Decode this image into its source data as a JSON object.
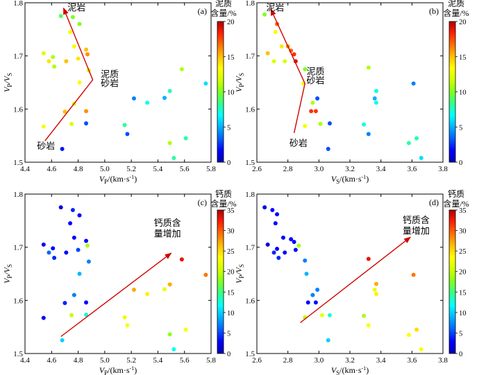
{
  "colormap": [
    "#0000b0",
    "#0000ff",
    "#0060ff",
    "#00b0ff",
    "#00ffff",
    "#30ff90",
    "#80ff20",
    "#d0ff00",
    "#ffff00",
    "#ffc000",
    "#ff7000",
    "#ff2000",
    "#b00000"
  ],
  "chart_data": [
    {
      "type": "scatter",
      "panel_label": "(a)",
      "xlabel_main": "V",
      "xlabel_sub": "P",
      "xlabel_unit": "/(km·s",
      "xlabel_exp": "-1",
      "xlabel_close": ")",
      "ylabel_main": "V",
      "ylabel_sub": "P",
      "ylabel_slash": "/V",
      "ylabel_sub2": "S",
      "xlim": [
        4.4,
        5.8
      ],
      "ylim": [
        1.5,
        1.8
      ],
      "xticks": [
        4.4,
        4.6,
        4.8,
        5.0,
        5.2,
        5.4,
        5.6,
        5.8
      ],
      "xtick_labels": [
        "4.4",
        "4.6",
        "4.8",
        "5.0",
        "5.2",
        "5.4",
        "5.6",
        "5.8"
      ],
      "yticks": [
        1.5,
        1.6,
        1.7,
        1.8
      ],
      "ytick_labels": [
        "1.5",
        "1.6",
        "1.7",
        "1.8"
      ],
      "colorbar": {
        "title_line1": "泥质",
        "title_line2": "含量/%",
        "min": 0,
        "max": 20,
        "ticks": [
          0,
          5,
          10,
          15,
          20
        ],
        "tick_labels": [
          "0",
          "5",
          "10",
          "15",
          "20"
        ]
      },
      "annotations": [
        {
          "text": "泥岩",
          "x": 4.72,
          "y": 1.785
        },
        {
          "text": "泥质",
          "x": 4.97,
          "y": 1.66
        },
        {
          "text": "砂岩",
          "x": 4.97,
          "y": 1.643
        },
        {
          "text": "砂岩",
          "x": 4.49,
          "y": 1.525
        }
      ],
      "arrows": [
        {
          "path": [
            [
              4.55,
              1.54
            ],
            [
              4.91,
              1.655
            ],
            [
              4.69,
              1.79
            ]
          ],
          "head": "end"
        }
      ],
      "points": [
        {
          "x": 4.54,
          "y": 1.705,
          "c": 12
        },
        {
          "x": 4.58,
          "y": 1.69,
          "c": 14
        },
        {
          "x": 4.61,
          "y": 1.698,
          "c": 11
        },
        {
          "x": 4.62,
          "y": 1.68,
          "c": 11
        },
        {
          "x": 4.67,
          "y": 1.775,
          "c": 9
        },
        {
          "x": 4.71,
          "y": 1.69,
          "c": 15
        },
        {
          "x": 4.76,
          "y": 1.773,
          "c": 10
        },
        {
          "x": 4.77,
          "y": 1.718,
          "c": 13
        },
        {
          "x": 4.81,
          "y": 1.76,
          "c": 10
        },
        {
          "x": 4.8,
          "y": 1.695,
          "c": 14
        },
        {
          "x": 4.86,
          "y": 1.712,
          "c": 15
        },
        {
          "x": 4.87,
          "y": 1.703,
          "c": 16
        },
        {
          "x": 4.88,
          "y": 1.673,
          "c": 12
        },
        {
          "x": 4.74,
          "y": 1.745,
          "c": 13
        },
        {
          "x": 4.81,
          "y": 1.65,
          "c": 13
        },
        {
          "x": 4.7,
          "y": 1.595,
          "c": 15
        },
        {
          "x": 4.77,
          "y": 1.61,
          "c": 12
        },
        {
          "x": 4.86,
          "y": 1.596,
          "c": 16
        },
        {
          "x": 4.75,
          "y": 1.572,
          "c": 12
        },
        {
          "x": 4.86,
          "y": 1.573,
          "c": 3
        },
        {
          "x": 4.54,
          "y": 1.567,
          "c": 13
        },
        {
          "x": 4.68,
          "y": 1.525,
          "c": 2
        },
        {
          "x": 5.22,
          "y": 1.62,
          "c": 4
        },
        {
          "x": 5.32,
          "y": 1.612,
          "c": 7
        },
        {
          "x": 5.45,
          "y": 1.621,
          "c": 5
        },
        {
          "x": 5.49,
          "y": 1.634,
          "c": 8
        },
        {
          "x": 5.15,
          "y": 1.57,
          "c": 8
        },
        {
          "x": 5.17,
          "y": 1.553,
          "c": 3
        },
        {
          "x": 5.49,
          "y": 1.536,
          "c": 11
        },
        {
          "x": 5.52,
          "y": 1.508,
          "c": 8
        },
        {
          "x": 5.58,
          "y": 1.675,
          "c": 11
        },
        {
          "x": 5.61,
          "y": 1.545,
          "c": 8
        },
        {
          "x": 5.76,
          "y": 1.648,
          "c": 6
        }
      ]
    },
    {
      "type": "scatter",
      "panel_label": "(b)",
      "xlabel_main": "V",
      "xlabel_sub": "S",
      "xlabel_unit": "/(km·s",
      "xlabel_exp": "-1",
      "xlabel_close": ")",
      "ylabel_main": "V",
      "ylabel_sub": "P",
      "ylabel_slash": "/V",
      "ylabel_sub2": "S",
      "xlim": [
        2.6,
        3.8
      ],
      "ylim": [
        1.5,
        1.8
      ],
      "xticks": [
        2.6,
        2.8,
        3.0,
        3.2,
        3.4,
        3.6,
        3.8
      ],
      "xtick_labels": [
        "2.6",
        "2.8",
        "3.0",
        "3.2",
        "3.4",
        "3.6",
        "3.8"
      ],
      "yticks": [
        1.5,
        1.6,
        1.7,
        1.8
      ],
      "ytick_labels": [
        "1.5",
        "1.6",
        "1.7",
        "1.8"
      ],
      "colorbar": {
        "title_line1": "泥质",
        "title_line2": "含量/%",
        "min": 0,
        "max": 20,
        "ticks": [
          0,
          5,
          10,
          15,
          20
        ],
        "tick_labels": [
          "0",
          "5",
          "10",
          "15",
          "20"
        ]
      },
      "annotations": [
        {
          "text": "泥岩",
          "x": 2.66,
          "y": 1.785
        },
        {
          "text": "泥质",
          "x": 2.92,
          "y": 1.665
        },
        {
          "text": "砂岩",
          "x": 2.92,
          "y": 1.648
        },
        {
          "text": "砂岩",
          "x": 2.81,
          "y": 1.53
        }
      ],
      "arrows": [
        {
          "path": [
            [
              2.84,
              1.555
            ],
            [
              2.91,
              1.648
            ],
            [
              2.69,
              1.788
            ]
          ],
          "head": "end"
        }
      ],
      "points": [
        {
          "x": 2.65,
          "y": 1.778,
          "c": 10
        },
        {
          "x": 2.67,
          "y": 1.705,
          "c": 15
        },
        {
          "x": 2.72,
          "y": 1.745,
          "c": 13
        },
        {
          "x": 2.73,
          "y": 1.76,
          "c": 17
        },
        {
          "x": 2.71,
          "y": 1.69,
          "c": 12
        },
        {
          "x": 2.76,
          "y": 1.718,
          "c": 14
        },
        {
          "x": 2.78,
          "y": 1.69,
          "c": 12
        },
        {
          "x": 2.8,
          "y": 1.718,
          "c": 16
        },
        {
          "x": 2.82,
          "y": 1.71,
          "c": 17
        },
        {
          "x": 2.84,
          "y": 1.703,
          "c": 18
        },
        {
          "x": 2.85,
          "y": 1.69,
          "c": 19
        },
        {
          "x": 2.91,
          "y": 1.675,
          "c": 10
        },
        {
          "x": 2.9,
          "y": 1.648,
          "c": 13
        },
        {
          "x": 2.96,
          "y": 1.612,
          "c": 11
        },
        {
          "x": 2.95,
          "y": 1.596,
          "c": 18
        },
        {
          "x": 2.98,
          "y": 1.596,
          "c": 18
        },
        {
          "x": 2.99,
          "y": 1.62,
          "c": 3
        },
        {
          "x": 3.01,
          "y": 1.572,
          "c": 11
        },
        {
          "x": 2.91,
          "y": 1.568,
          "c": 13
        },
        {
          "x": 3.07,
          "y": 1.573,
          "c": 3
        },
        {
          "x": 3.06,
          "y": 1.525,
          "c": 3
        },
        {
          "x": 3.29,
          "y": 1.571,
          "c": 7
        },
        {
          "x": 3.32,
          "y": 1.553,
          "c": 4
        },
        {
          "x": 3.32,
          "y": 1.678,
          "c": 11
        },
        {
          "x": 3.36,
          "y": 1.62,
          "c": 5
        },
        {
          "x": 3.37,
          "y": 1.634,
          "c": 7
        },
        {
          "x": 3.37,
          "y": 1.612,
          "c": 7
        },
        {
          "x": 3.58,
          "y": 1.536,
          "c": 8
        },
        {
          "x": 3.61,
          "y": 1.648,
          "c": 4
        },
        {
          "x": 3.63,
          "y": 1.545,
          "c": 8
        },
        {
          "x": 3.66,
          "y": 1.508,
          "c": 6
        }
      ]
    },
    {
      "type": "scatter",
      "panel_label": "(c)",
      "xlabel_main": "V",
      "xlabel_sub": "P",
      "xlabel_unit": "/(km·s",
      "xlabel_exp": "-1",
      "xlabel_close": ")",
      "ylabel_main": "V",
      "ylabel_sub": "P",
      "ylabel_slash": "/V",
      "ylabel_sub2": "S",
      "xlim": [
        4.4,
        5.8
      ],
      "ylim": [
        1.5,
        1.8
      ],
      "xticks": [
        4.4,
        4.6,
        4.8,
        5.0,
        5.2,
        5.4,
        5.6,
        5.8
      ],
      "xtick_labels": [
        "4.4",
        "4.6",
        "4.8",
        "5.0",
        "5.2",
        "5.4",
        "5.6",
        "5.8"
      ],
      "yticks": [
        1.5,
        1.6,
        1.7,
        1.8
      ],
      "ytick_labels": [
        "1.5",
        "1.6",
        "1.7",
        "1.8"
      ],
      "colorbar": {
        "title_line1": "钙质",
        "title_line2": "含量/%",
        "min": 0,
        "max": 35,
        "ticks": [
          0,
          5,
          10,
          15,
          20,
          25,
          30,
          35
        ],
        "tick_labels": [
          "0",
          "5",
          "10",
          "15",
          "20",
          "25",
          "30",
          "35"
        ]
      },
      "annotations": [
        {
          "text": "钙质含",
          "x": 5.37,
          "y": 1.74
        },
        {
          "text": "量增加",
          "x": 5.37,
          "y": 1.72
        }
      ],
      "arrows": [
        {
          "path": [
            [
              4.67,
              1.532
            ],
            [
              5.5,
              1.689
            ]
          ],
          "head": "end"
        }
      ],
      "points": [
        {
          "x": 4.54,
          "y": 1.705,
          "c": 3
        },
        {
          "x": 4.58,
          "y": 1.69,
          "c": 6
        },
        {
          "x": 4.61,
          "y": 1.698,
          "c": 3
        },
        {
          "x": 4.62,
          "y": 1.68,
          "c": 4
        },
        {
          "x": 4.67,
          "y": 1.775,
          "c": 2
        },
        {
          "x": 4.71,
          "y": 1.69,
          "c": 3
        },
        {
          "x": 4.76,
          "y": 1.77,
          "c": 4
        },
        {
          "x": 4.77,
          "y": 1.718,
          "c": 3
        },
        {
          "x": 4.81,
          "y": 1.76,
          "c": 3
        },
        {
          "x": 4.8,
          "y": 1.695,
          "c": 5
        },
        {
          "x": 4.86,
          "y": 1.712,
          "c": 3
        },
        {
          "x": 4.87,
          "y": 1.703,
          "c": 19
        },
        {
          "x": 4.88,
          "y": 1.673,
          "c": 7
        },
        {
          "x": 4.74,
          "y": 1.745,
          "c": 3
        },
        {
          "x": 4.81,
          "y": 1.65,
          "c": 9
        },
        {
          "x": 4.7,
          "y": 1.595,
          "c": 4
        },
        {
          "x": 4.77,
          "y": 1.61,
          "c": 7
        },
        {
          "x": 4.86,
          "y": 1.596,
          "c": 3
        },
        {
          "x": 4.75,
          "y": 1.572,
          "c": 20
        },
        {
          "x": 4.86,
          "y": 1.573,
          "c": 13
        },
        {
          "x": 4.54,
          "y": 1.567,
          "c": 3
        },
        {
          "x": 4.68,
          "y": 1.525,
          "c": 10
        },
        {
          "x": 5.22,
          "y": 1.62,
          "c": 27
        },
        {
          "x": 5.32,
          "y": 1.612,
          "c": 24
        },
        {
          "x": 5.45,
          "y": 1.621,
          "c": 22
        },
        {
          "x": 5.49,
          "y": 1.63,
          "c": 27
        },
        {
          "x": 5.15,
          "y": 1.568,
          "c": 22
        },
        {
          "x": 5.17,
          "y": 1.553,
          "c": 23
        },
        {
          "x": 5.49,
          "y": 1.536,
          "c": 18
        },
        {
          "x": 5.52,
          "y": 1.508,
          "c": 12
        },
        {
          "x": 5.58,
          "y": 1.677,
          "c": 33
        },
        {
          "x": 5.61,
          "y": 1.545,
          "c": 23
        },
        {
          "x": 5.76,
          "y": 1.648,
          "c": 29
        }
      ]
    },
    {
      "type": "scatter",
      "panel_label": "(d)",
      "xlabel_main": "V",
      "xlabel_sub": "S",
      "xlabel_unit": "/(km·s",
      "xlabel_exp": "-1",
      "xlabel_close": ")",
      "ylabel_main": "V",
      "ylabel_sub": "P",
      "ylabel_slash": "/V",
      "ylabel_sub2": "S",
      "xlim": [
        2.6,
        3.8
      ],
      "ylim": [
        1.5,
        1.8
      ],
      "xticks": [
        2.6,
        2.8,
        3.0,
        3.2,
        3.4,
        3.6,
        3.8
      ],
      "xtick_labels": [
        "2.6",
        "2.8",
        "3.0",
        "3.2",
        "3.4",
        "3.6",
        "3.8"
      ],
      "yticks": [
        1.5,
        1.6,
        1.7,
        1.8
      ],
      "ytick_labels": [
        "1.5",
        "1.6",
        "1.7",
        "1.8"
      ],
      "colorbar": {
        "title_line1": "钙质",
        "title_line2": "含量/%",
        "min": 0,
        "max": 35,
        "ticks": [
          0,
          5,
          10,
          15,
          20,
          25,
          30,
          35
        ],
        "tick_labels": [
          "0",
          "5",
          "10",
          "15",
          "20",
          "25",
          "30",
          "35"
        ]
      },
      "annotations": [
        {
          "text": "钙质含",
          "x": 3.54,
          "y": 1.745
        },
        {
          "text": "量增加",
          "x": 3.54,
          "y": 1.725
        }
      ],
      "arrows": [
        {
          "path": [
            [
              2.88,
              1.558
            ],
            [
              3.59,
              1.719
            ]
          ],
          "head": "end"
        }
      ],
      "points": [
        {
          "x": 2.65,
          "y": 1.775,
          "c": 2
        },
        {
          "x": 2.67,
          "y": 1.705,
          "c": 2
        },
        {
          "x": 2.7,
          "y": 1.77,
          "c": 3
        },
        {
          "x": 2.72,
          "y": 1.745,
          "c": 3
        },
        {
          "x": 2.73,
          "y": 1.762,
          "c": 3
        },
        {
          "x": 2.71,
          "y": 1.69,
          "c": 4
        },
        {
          "x": 2.73,
          "y": 1.697,
          "c": 3
        },
        {
          "x": 2.74,
          "y": 1.68,
          "c": 4
        },
        {
          "x": 2.77,
          "y": 1.718,
          "c": 3
        },
        {
          "x": 2.78,
          "y": 1.69,
          "c": 3
        },
        {
          "x": 2.82,
          "y": 1.715,
          "c": 3
        },
        {
          "x": 2.84,
          "y": 1.71,
          "c": 3
        },
        {
          "x": 2.85,
          "y": 1.695,
          "c": 3
        },
        {
          "x": 2.87,
          "y": 1.703,
          "c": 19
        },
        {
          "x": 2.91,
          "y": 1.675,
          "c": 7
        },
        {
          "x": 2.92,
          "y": 1.65,
          "c": 9
        },
        {
          "x": 2.93,
          "y": 1.596,
          "c": 3
        },
        {
          "x": 2.96,
          "y": 1.61,
          "c": 7
        },
        {
          "x": 2.98,
          "y": 1.596,
          "c": 3
        },
        {
          "x": 2.99,
          "y": 1.62,
          "c": 7
        },
        {
          "x": 2.91,
          "y": 1.568,
          "c": 20
        },
        {
          "x": 3.02,
          "y": 1.572,
          "c": 22
        },
        {
          "x": 3.07,
          "y": 1.572,
          "c": 13
        },
        {
          "x": 3.06,
          "y": 1.525,
          "c": 10
        },
        {
          "x": 3.29,
          "y": 1.571,
          "c": 19
        },
        {
          "x": 3.32,
          "y": 1.553,
          "c": 23
        },
        {
          "x": 3.32,
          "y": 1.678,
          "c": 33
        },
        {
          "x": 3.36,
          "y": 1.62,
          "c": 22
        },
        {
          "x": 3.37,
          "y": 1.631,
          "c": 27
        },
        {
          "x": 3.37,
          "y": 1.612,
          "c": 24
        },
        {
          "x": 3.58,
          "y": 1.535,
          "c": 23
        },
        {
          "x": 3.61,
          "y": 1.648,
          "c": 29
        },
        {
          "x": 3.63,
          "y": 1.545,
          "c": 25
        },
        {
          "x": 3.66,
          "y": 1.508,
          "c": 23
        }
      ]
    }
  ]
}
